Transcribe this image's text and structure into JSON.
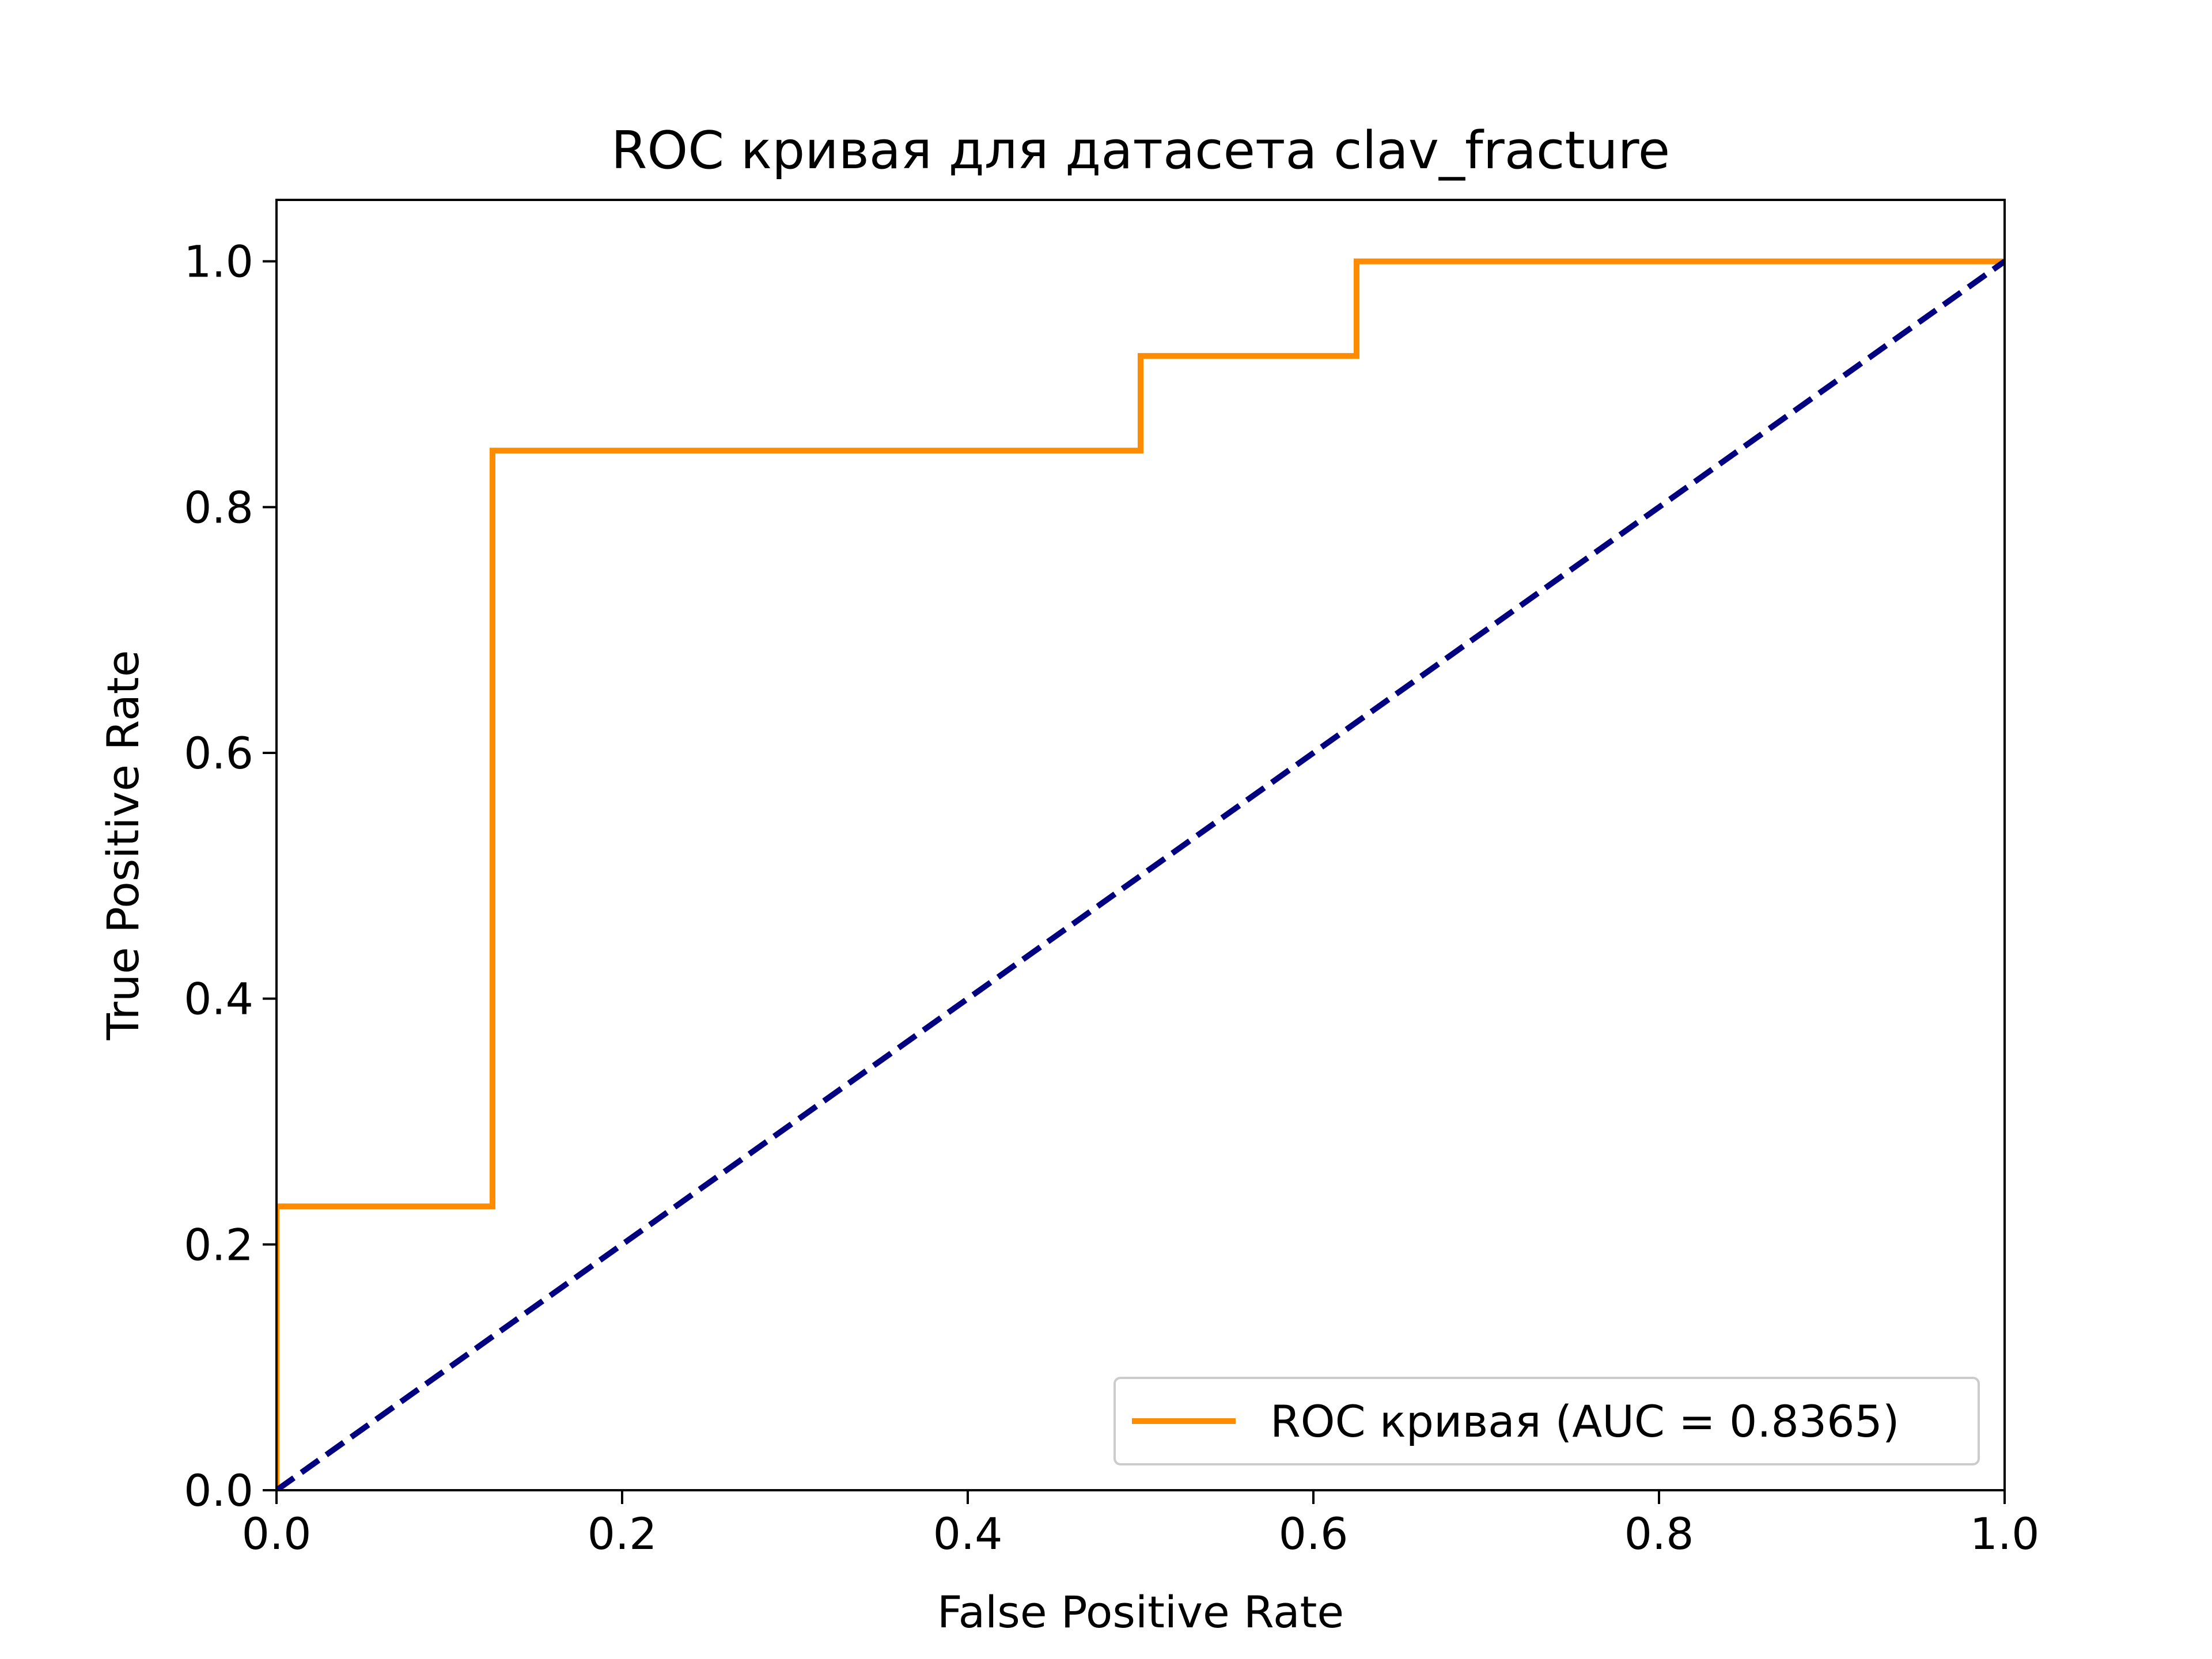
{
  "chart_data": {
    "type": "line",
    "title": "ROC кривая для датасета clav_fracture",
    "xlabel": "False Positive Rate",
    "ylabel": "True Positive Rate",
    "xlim": [
      0.0,
      1.0
    ],
    "ylim": [
      0.0,
      1.05
    ],
    "x_ticks": [
      0.0,
      0.2,
      0.4,
      0.6,
      0.8,
      1.0
    ],
    "x_tick_labels": [
      "0.0",
      "0.2",
      "0.4",
      "0.6",
      "0.8",
      "1.0"
    ],
    "y_ticks": [
      0.0,
      0.2,
      0.4,
      0.6,
      0.8,
      1.0
    ],
    "y_tick_labels": [
      "0.0",
      "0.2",
      "0.4",
      "0.6",
      "0.8",
      "1.0"
    ],
    "grid": false,
    "legend_position": "lower-right",
    "series": [
      {
        "name": "ROC кривая (AUC = 0.8365)",
        "color": "#ff8c00",
        "style": "solid",
        "x": [
          0.0,
          0.0,
          0.125,
          0.125,
          0.5,
          0.5,
          0.625,
          0.625,
          1.0
        ],
        "y": [
          0.0,
          0.231,
          0.231,
          0.846,
          0.846,
          0.923,
          0.923,
          1.0,
          1.0
        ]
      },
      {
        "color": "#000080",
        "style": "dashed",
        "x": [
          0.0,
          1.0
        ],
        "y": [
          0.0,
          1.0
        ]
      }
    ]
  }
}
